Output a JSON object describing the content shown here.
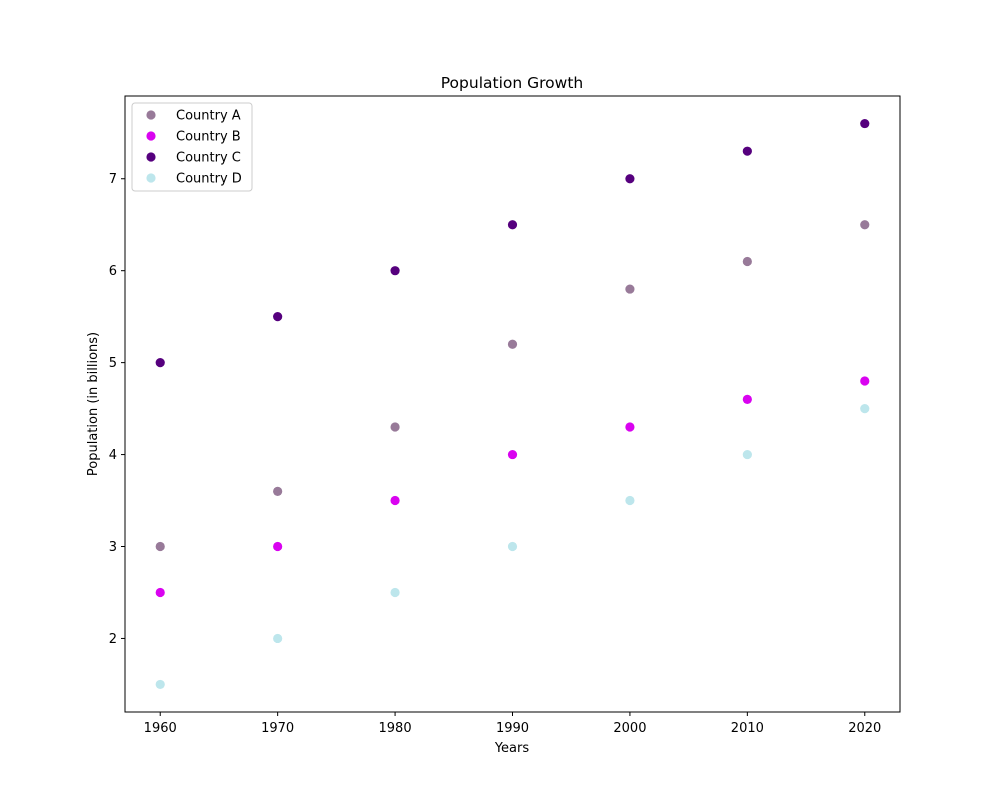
{
  "chart_data": {
    "type": "scatter",
    "title": "Population Growth",
    "xlabel": "Years",
    "ylabel": "Population (in billions)",
    "x": [
      1960,
      1970,
      1980,
      1990,
      2000,
      2010,
      2020
    ],
    "xlim": [
      1957,
      2023
    ],
    "ylim": [
      1.2,
      7.9
    ],
    "xticks": [
      "1960",
      "1970",
      "1980",
      "1990",
      "2000",
      "2010",
      "2020"
    ],
    "yticks": [
      "2",
      "3",
      "4",
      "5",
      "6",
      "7"
    ],
    "yticks_values": [
      2,
      3,
      4,
      5,
      6,
      7
    ],
    "grid": false,
    "legend_position": "top-left",
    "series": [
      {
        "name": "Country A",
        "color": "#987a99",
        "values": [
          3.0,
          3.6,
          4.3,
          5.2,
          5.8,
          6.1,
          6.5
        ]
      },
      {
        "name": "Country B",
        "color": "#d903f0",
        "values": [
          2.5,
          3.0,
          3.5,
          4.0,
          4.3,
          4.6,
          4.8
        ]
      },
      {
        "name": "Country C",
        "color": "#56007e",
        "values": [
          5.0,
          5.5,
          6.0,
          6.5,
          7.0,
          7.3,
          7.6
        ]
      },
      {
        "name": "Country D",
        "color": "#bde6ec",
        "values": [
          1.5,
          2.0,
          2.5,
          3.0,
          3.5,
          4.0,
          4.5
        ]
      }
    ]
  }
}
